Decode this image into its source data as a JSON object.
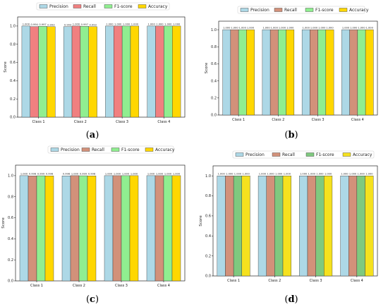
{
  "colors": {
    "precision": "#add8e6",
    "recall": "#f08080",
    "f1": "#90ee90",
    "accuracy": "#ffd700",
    "recall_alt": "#d2917a",
    "f1_alt": "#7fc97f",
    "accuracy_alt": "#f5e11e"
  },
  "chart_data": [
    {
      "type": "bar",
      "panel": "a",
      "caption_label": "a",
      "categories": [
        "Class 1",
        "Class 2",
        "Class 3",
        "Class 4"
      ],
      "series": [
        {
          "name": "Precision",
          "values": [
            1.0,
            0.993,
            1.0,
            1.0
          ],
          "labels": [
            "1.000",
            "0.993",
            "1.000",
            "1.000"
          ]
        },
        {
          "name": "Recall",
          "values": [
            0.994,
            1.0,
            1.0,
            1.0
          ],
          "labels": [
            "0.994",
            "1.000",
            "1.000",
            "1.000"
          ]
        },
        {
          "name": "F1-score",
          "values": [
            0.997,
            0.997,
            1.0,
            1.0
          ],
          "labels": [
            "0.997",
            "0.997",
            "1.000",
            "1.000"
          ]
        },
        {
          "name": "Accuracy",
          "values": [
            0.993,
            0.993,
            1.0,
            1.0
          ],
          "labels": [
            "0.993",
            "0.993",
            "1.000",
            "1.000"
          ]
        }
      ],
      "ylabel": "Score",
      "ylim": [
        0,
        1.1
      ],
      "yticks": [
        "0.0",
        "0.2",
        "0.4",
        "0.6",
        "0.8",
        "1.0"
      ],
      "legend": "top-center",
      "grid": false
    },
    {
      "type": "bar",
      "panel": "b",
      "caption_label": "b",
      "categories": [
        "Class 1",
        "Class 2",
        "Class 3",
        "Class 4"
      ],
      "series": [
        {
          "name": "Precision",
          "values": [
            1.0,
            1.0,
            1.0,
            1.0
          ],
          "labels": [
            "1.000",
            "1.000",
            "1.000",
            "1.000"
          ]
        },
        {
          "name": "Recall",
          "values": [
            1.0,
            1.0,
            1.0,
            1.0
          ],
          "labels": [
            "1.000",
            "1.000",
            "1.000",
            "1.000"
          ]
        },
        {
          "name": "F1-score",
          "values": [
            1.0,
            1.0,
            1.0,
            1.0
          ],
          "labels": [
            "1.000",
            "1.000",
            "1.000",
            "1.000"
          ]
        },
        {
          "name": "Accuracy",
          "values": [
            1.0,
            1.0,
            1.0,
            1.0
          ],
          "labels": [
            "1.000",
            "1.000",
            "1.000",
            "1.000"
          ]
        }
      ],
      "ylabel": "Score",
      "ylim": [
        0,
        1.1
      ],
      "yticks": [
        "0.0",
        "0.2",
        "0.4",
        "0.6",
        "0.8",
        "1.0"
      ],
      "legend": "top-center",
      "grid": false
    },
    {
      "type": "bar",
      "panel": "c",
      "caption_label": "c",
      "categories": [
        "Class 1",
        "Class 2",
        "Class 3",
        "Class 4"
      ],
      "series": [
        {
          "name": "Precision",
          "values": [
            1.0,
            0.998,
            1.0,
            1.0
          ],
          "labels": [
            "1.000",
            "0.998",
            "1.000",
            "1.000"
          ]
        },
        {
          "name": "Recall",
          "values": [
            0.998,
            1.0,
            1.0,
            1.0
          ],
          "labels": [
            "0.998",
            "1.000",
            "1.000",
            "1.000"
          ]
        },
        {
          "name": "F1-score",
          "values": [
            0.999,
            0.999,
            1.0,
            1.0
          ],
          "labels": [
            "0.999",
            "0.999",
            "1.000",
            "1.000"
          ]
        },
        {
          "name": "Accuracy",
          "values": [
            0.998,
            0.998,
            1.0,
            1.0
          ],
          "labels": [
            "0.998",
            "0.998",
            "1.000",
            "1.000"
          ]
        }
      ],
      "ylabel": "Score",
      "ylim": [
        0,
        1.1
      ],
      "yticks": [
        "0.0",
        "0.2",
        "0.4",
        "0.6",
        "0.8",
        "1.0"
      ],
      "legend": "top-center",
      "grid": false
    },
    {
      "type": "bar",
      "panel": "d",
      "caption_label": "d",
      "categories": [
        "Class 1",
        "Class 2",
        "Class 3",
        "Class 4"
      ],
      "series": [
        {
          "name": "Precision",
          "values": [
            1.0,
            1.0,
            1.0,
            1.0
          ],
          "labels": [
            "1.000",
            "1.000",
            "1.000",
            "1.000"
          ]
        },
        {
          "name": "Recall",
          "values": [
            1.0,
            1.0,
            1.0,
            1.0
          ],
          "labels": [
            "1.000",
            "1.000",
            "1.000",
            "1.000"
          ]
        },
        {
          "name": "F1-score",
          "values": [
            1.0,
            1.0,
            1.0,
            1.0
          ],
          "labels": [
            "1.000",
            "1.000",
            "1.000",
            "1.000"
          ]
        },
        {
          "name": "Accuracy",
          "values": [
            1.0,
            1.0,
            1.0,
            1.0
          ],
          "labels": [
            "1.000",
            "1.000",
            "1.000",
            "1.000"
          ]
        }
      ],
      "ylabel": "Score",
      "ylim": [
        0,
        1.1
      ],
      "yticks": [
        "0.0",
        "0.2",
        "0.4",
        "0.6",
        "0.8",
        "1.0"
      ],
      "legend": "top-center",
      "grid": false
    }
  ]
}
